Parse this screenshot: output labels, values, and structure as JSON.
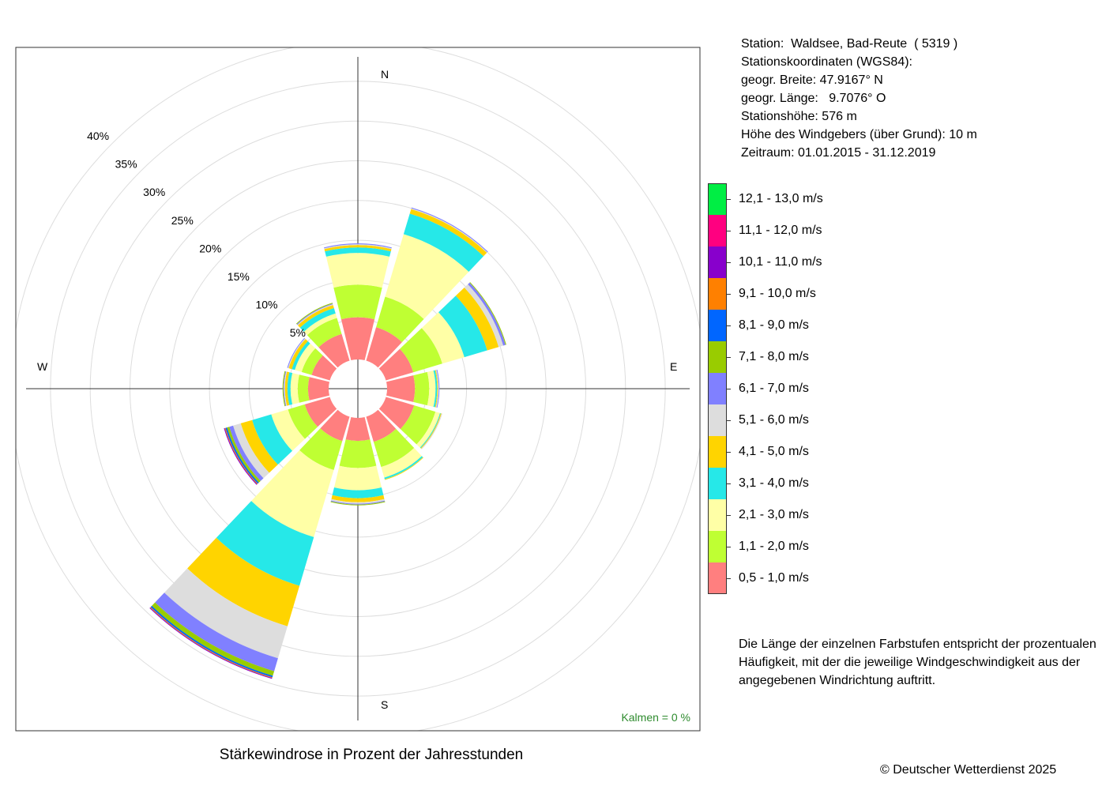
{
  "chart_data": {
    "type": "wind-rose",
    "title": "Stärkewindrose in Prozent der Jahresstunden",
    "calm_label": "Kalmen  =  0 %",
    "compass_labels": {
      "n": "N",
      "e": "E",
      "s": "S",
      "w": "W"
    },
    "radial_ticks": [
      5,
      10,
      15,
      20,
      25,
      30,
      35,
      40
    ],
    "radial_tick_labels": [
      "5%",
      "10%",
      "15%",
      "20%",
      "25%",
      "30%",
      "35%",
      "40%"
    ],
    "radial_max": 40,
    "speed_classes": [
      {
        "label": "0,5 - 1,0 m/s",
        "color": "#FF7F7F"
      },
      {
        "label": "1,1 - 2,0 m/s",
        "color": "#BFFF33"
      },
      {
        "label": "2,1 - 3,0 m/s",
        "color": "#FFFFA6"
      },
      {
        "label": "3,1 - 4,0 m/s",
        "color": "#26E8E8"
      },
      {
        "label": "4,1 - 5,0 m/s",
        "color": "#FFD400"
      },
      {
        "label": "5,1 - 6,0 m/s",
        "color": "#DDDDDD"
      },
      {
        "label": "6,1 - 7,0 m/s",
        "color": "#8080FF"
      },
      {
        "label": "7,1 - 8,0 m/s",
        "color": "#99CC00"
      },
      {
        "label": "8,1 - 9,0 m/s",
        "color": "#0066FF"
      },
      {
        "label": "9,1 - 10,0 m/s",
        "color": "#FF8000"
      },
      {
        "label": "10,1 - 11,0 m/s",
        "color": "#8800CC"
      },
      {
        "label": "11,1 - 12,0 m/s",
        "color": "#FF0080"
      },
      {
        "label": "12,1 - 13,0 m/s",
        "color": "#00EE44"
      }
    ],
    "sectors": [
      {
        "direction_deg": 0,
        "cumulative": [
          5.3,
          9.4,
          13.4,
          14.1,
          14.4,
          14.5,
          14.6
        ]
      },
      {
        "direction_deg": 30,
        "cumulative": [
          4.4,
          8.4,
          16.6,
          19.3,
          19.9,
          20.0,
          20.1
        ]
      },
      {
        "direction_deg": 60,
        "cumulative": [
          3.6,
          7.4,
          10.3,
          13.3,
          14.8,
          15.4,
          15.7,
          15.8
        ]
      },
      {
        "direction_deg": 90,
        "cumulative": [
          3.5,
          5.3,
          6.1,
          6.3,
          6.4,
          6.5,
          6.6
        ]
      },
      {
        "direction_deg": 120,
        "cumulative": [
          3.7,
          6.5,
          7.1,
          7.2,
          7.3,
          7.4
        ]
      },
      {
        "direction_deg": 150,
        "cumulative": [
          3.3,
          6.6,
          8.0,
          8.2,
          8.3
        ]
      },
      {
        "direction_deg": 180,
        "cumulative": [
          2.9,
          6.3,
          9.1,
          10.1,
          10.6,
          10.8,
          10.9,
          11.0
        ]
      },
      {
        "direction_deg": 210,
        "cumulative": [
          3.2,
          7.0,
          15.8,
          22.2,
          27.5,
          31.7,
          33.4,
          34.0,
          34.2,
          34.3,
          34.4
        ]
      },
      {
        "direction_deg": 240,
        "cumulative": [
          3.3,
          5.5,
          7.7,
          10.2,
          11.7,
          12.7,
          13.2,
          13.5,
          13.7,
          13.8,
          13.9
        ]
      },
      {
        "direction_deg": 270,
        "cumulative": [
          2.6,
          3.9,
          4.8,
          5.2,
          5.5,
          5.6,
          5.7,
          5.8
        ]
      },
      {
        "direction_deg": 300,
        "cumulative": [
          2.4,
          3.7,
          4.6,
          5.0,
          5.4,
          5.5,
          5.6
        ]
      },
      {
        "direction_deg": 330,
        "cumulative": [
          3.5,
          5.6,
          6.2,
          6.9,
          7.3,
          7.4,
          7.5,
          7.6
        ]
      }
    ]
  },
  "station": {
    "line1": "Station:  Waldsee, Bad-Reute  ( 5319 )",
    "line2": "Stationskoordinaten (WGS84):",
    "line3": "geogr. Breite: 47.9167° N",
    "line4": "geogr. Länge:   9.7076° O",
    "line5": "Stationshöhe: 576 m",
    "line6": "Höhe des Windgebers (über Grund): 10 m",
    "line7": "Zeitraum: 01.01.2015 - 31.12.2019"
  },
  "note": "Die Länge der einzelnen Farbstufen entspricht der prozentualen Häufigkeit, mit der die jeweilige Windgeschwindigkeit aus der angegebenen Windrichtung auftritt.",
  "copyright": "© Deutscher Wetterdienst  2025"
}
